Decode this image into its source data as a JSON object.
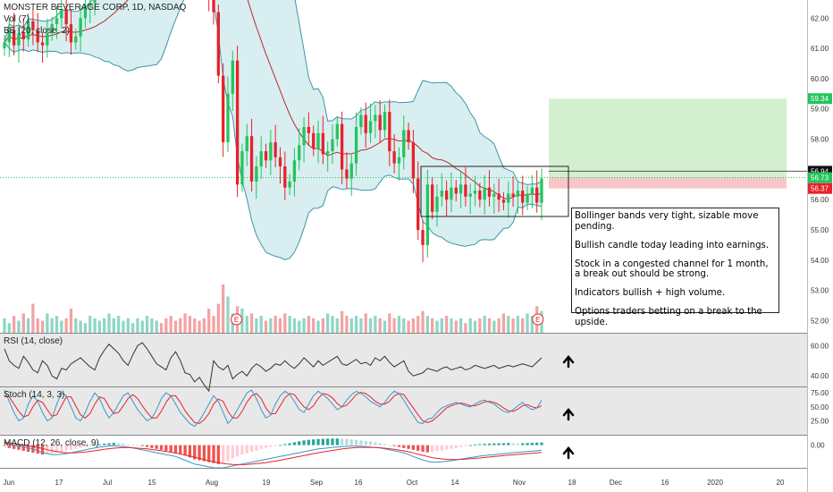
{
  "header": {
    "symbol_line": "MONSTER BEVERAGE CORP, 1D, NASDAQ",
    "vol_line": "Vol (7)",
    "bb_line": "BB (20, close, 2)"
  },
  "annotation": [
    "Bollinger bands very tight, sizable move pending.",
    "Bullish candle today leading into earnings.",
    "Stock in a congested channel for 1 month, a break out should be strong.",
    "Indicators bullish + high volume.",
    "Options traders betting on a break to the upside."
  ],
  "colors": {
    "up": "#22c55e",
    "down": "#e8212b",
    "bb_band": "#3a96a8",
    "bb_fill": "#d9eef0",
    "basis": "#b3312a",
    "target_zone": "#d4efcf",
    "stop_zone": "#f7c6c6",
    "arrow": "#000000"
  },
  "chart_data": [
    {
      "type": "candlestick",
      "title": "MONSTER BEVERAGE CORP, 1D, NASDAQ",
      "price_axis": [
        52,
        53,
        54,
        55,
        56,
        57,
        58,
        59,
        60,
        61,
        62
      ],
      "price_tick_labels": [
        "52.00",
        "53.00",
        "54.00",
        "55.00",
        "56.00",
        "57.00",
        "58.00",
        "59.00",
        "60.00",
        "61.00",
        "62.00"
      ],
      "ylim": [
        51.6,
        62.6
      ],
      "time_axis_labels": [
        "Jun",
        "17",
        "Jul",
        "15",
        "Aug",
        "19",
        "Sep",
        "16",
        "Oct",
        "14",
        "Nov",
        "18",
        "Dec",
        "16",
        "2020",
        "20"
      ],
      "price_tags": [
        {
          "label": "59.34",
          "value": 59.34,
          "color": "#22c55e"
        },
        {
          "label": "56.94",
          "value": 56.94,
          "color": "#111111"
        },
        {
          "label": "56.73",
          "value": 56.73,
          "color": "#22c55e"
        },
        {
          "label": "56.37",
          "value": 56.37,
          "color": "#e8212b"
        }
      ],
      "long_position": {
        "entry": 56.73,
        "target": 59.34,
        "stop": 56.37
      },
      "earnings_markers": [
        "E",
        "E"
      ],
      "closes": [
        61.2,
        61.6,
        61.1,
        61.5,
        61.3,
        61.9,
        61.6,
        61.2,
        61.1,
        61.5,
        61.8,
        62.0,
        62.3,
        61.8,
        61.2,
        61.4,
        62.0,
        62.4,
        62.5,
        62.9,
        63.1,
        63.4,
        63.6,
        64.1,
        64.3,
        64.6,
        65.0,
        65.2,
        65.6,
        66.0,
        66.3,
        66.6,
        66.9,
        66.7,
        66.4,
        66.2,
        65.9,
        65.6,
        65.1,
        64.6,
        64.2,
        63.7,
        63.3,
        62.8,
        62.2,
        60.1,
        57.9,
        59.5,
        60.6,
        56.5,
        57.6,
        58.1,
        56.6,
        57.1,
        57.6,
        57.3,
        57.9,
        57.4,
        57.1,
        56.4,
        56.6,
        57.3,
        57.8,
        58.4,
        58.2,
        57.7,
        58.2,
        57.5,
        57.6,
        58.0,
        58.5,
        57.0,
        56.7,
        57.2,
        58.4,
        58.8,
        58.2,
        58.6,
        58.8,
        58.3,
        58.9,
        57.6,
        57.2,
        57.4,
        58.3,
        57.9,
        56.7,
        55.0,
        54.5,
        56.5,
        55.6,
        56.1,
        56.3,
        56.0,
        56.4,
        56.2,
        56.5,
        56.1,
        56.2,
        56.3,
        56.0,
        56.4,
        56.1,
        56.2,
        56.0,
        55.9,
        56.2,
        56.1,
        56.3,
        55.9,
        56.2,
        56.4,
        55.9,
        56.7
      ],
      "opens": [
        61.0,
        61.2,
        61.6,
        61.1,
        61.5,
        61.3,
        61.9,
        61.6,
        61.2,
        61.1,
        61.5,
        61.8,
        62.0,
        62.3,
        61.8,
        61.2,
        61.4,
        62.0,
        62.4,
        62.5,
        62.9,
        63.1,
        63.4,
        63.6,
        64.1,
        64.3,
        64.6,
        65.0,
        65.2,
        65.6,
        66.0,
        66.3,
        66.6,
        66.9,
        66.7,
        66.4,
        66.2,
        65.9,
        65.6,
        65.1,
        64.6,
        64.2,
        63.7,
        63.3,
        62.8,
        62.2,
        60.1,
        57.9,
        59.5,
        60.6,
        56.5,
        57.6,
        58.1,
        56.6,
        57.1,
        57.6,
        57.3,
        57.9,
        57.4,
        57.1,
        56.4,
        56.6,
        57.3,
        57.8,
        58.4,
        58.2,
        57.7,
        58.2,
        57.5,
        57.6,
        58.0,
        58.5,
        57.0,
        56.7,
        57.2,
        58.4,
        58.8,
        58.2,
        58.6,
        58.8,
        58.3,
        58.9,
        57.6,
        57.2,
        57.4,
        58.3,
        57.9,
        56.7,
        55.0,
        54.5,
        56.5,
        55.6,
        56.1,
        56.3,
        56.0,
        56.4,
        56.2,
        56.5,
        56.1,
        56.2,
        56.3,
        56.0,
        56.4,
        56.1,
        56.2,
        56.0,
        55.9,
        56.2,
        56.1,
        56.3,
        55.9,
        56.2,
        56.4,
        55.9
      ],
      "volume_relative": [
        0.3,
        0.2,
        0.35,
        0.25,
        0.4,
        0.3,
        0.6,
        0.3,
        0.25,
        0.4,
        0.3,
        0.35,
        0.25,
        0.3,
        0.5,
        0.3,
        0.25,
        0.2,
        0.35,
        0.3,
        0.25,
        0.3,
        0.4,
        0.3,
        0.35,
        0.25,
        0.3,
        0.2,
        0.3,
        0.25,
        0.35,
        0.3,
        0.25,
        0.2,
        0.3,
        0.35,
        0.25,
        0.3,
        0.4,
        0.35,
        0.3,
        0.25,
        0.3,
        0.5,
        0.35,
        0.6,
        1.0,
        0.75,
        0.4,
        0.55,
        0.5,
        0.35,
        0.4,
        0.3,
        0.35,
        0.25,
        0.3,
        0.35,
        0.3,
        0.4,
        0.35,
        0.3,
        0.25,
        0.3,
        0.35,
        0.3,
        0.25,
        0.3,
        0.4,
        0.35,
        0.3,
        0.45,
        0.35,
        0.3,
        0.35,
        0.3,
        0.4,
        0.3,
        0.35,
        0.3,
        0.25,
        0.4,
        0.3,
        0.35,
        0.3,
        0.25,
        0.3,
        0.35,
        0.45,
        0.35,
        0.3,
        0.25,
        0.3,
        0.35,
        0.3,
        0.25,
        0.3,
        0.2,
        0.3,
        0.25,
        0.3,
        0.35,
        0.3,
        0.25,
        0.3,
        0.4,
        0.35,
        0.3,
        0.35,
        0.3,
        0.4,
        0.35,
        0.55,
        0.45
      ]
    },
    {
      "type": "line",
      "title": "RSI (14, close)",
      "series_name": "RSI (14, close)",
      "ylim": [
        33,
        68
      ],
      "tick_labels": [
        "60.00",
        "40.00"
      ],
      "tick_values": [
        60,
        40
      ],
      "values": [
        58,
        50,
        47,
        45,
        53,
        49,
        44,
        42,
        50,
        47,
        40,
        38,
        45,
        44,
        48,
        50,
        52,
        49,
        46,
        44,
        52,
        57,
        61,
        58,
        55,
        50,
        47,
        54,
        60,
        62,
        58,
        53,
        48,
        46,
        44,
        52,
        56,
        50,
        42,
        41,
        36,
        39,
        34,
        30,
        50,
        46,
        44,
        47,
        38,
        41,
        43,
        40,
        45,
        48,
        46,
        43,
        45,
        48,
        47,
        50,
        47,
        45,
        48,
        52,
        49,
        46,
        50,
        47,
        49,
        51,
        53,
        48,
        47,
        49,
        51,
        48,
        49,
        47,
        52,
        50,
        53,
        49,
        46,
        48,
        50,
        43,
        40,
        41,
        42,
        45,
        44,
        43,
        45,
        46,
        44,
        45,
        46,
        44,
        45,
        47,
        46,
        45,
        46,
        47,
        45,
        46,
        47,
        46,
        47,
        48,
        47,
        46,
        49,
        52
      ]
    },
    {
      "type": "line",
      "title": "Stoch (14, 3, 3)",
      "series": [
        {
          "name": "%K"
        },
        {
          "name": "%D"
        }
      ],
      "ylim": [
        0,
        85
      ],
      "tick_labels": [
        "75.00",
        "50.00",
        "25.00"
      ],
      "tick_values": [
        75,
        50,
        25
      ],
      "k": [
        80,
        60,
        40,
        25,
        30,
        55,
        70,
        60,
        40,
        25,
        30,
        55,
        75,
        70,
        50,
        30,
        25,
        40,
        60,
        75,
        65,
        45,
        30,
        40,
        55,
        70,
        75,
        60,
        45,
        35,
        25,
        30,
        45,
        65,
        75,
        70,
        55,
        40,
        30,
        20,
        15,
        25,
        40,
        55,
        70,
        60,
        40,
        20,
        30,
        45,
        60,
        75,
        80,
        65,
        45,
        30,
        35,
        55,
        70,
        78,
        72,
        60,
        45,
        40,
        55,
        70,
        78,
        72,
        65,
        55,
        45,
        50,
        62,
        72,
        78,
        74,
        68,
        60,
        55,
        50,
        58,
        70,
        78,
        74,
        62,
        48,
        35,
        22,
        20,
        28,
        30,
        40,
        48,
        52,
        55,
        58,
        55,
        52,
        50,
        55,
        60,
        62,
        58,
        55,
        48,
        42,
        40,
        45,
        52,
        58,
        50,
        45,
        48,
        62
      ],
      "d": [
        70,
        68,
        55,
        42,
        32,
        35,
        50,
        62,
        58,
        45,
        33,
        36,
        52,
        68,
        68,
        52,
        36,
        30,
        38,
        55,
        68,
        65,
        50,
        38,
        40,
        52,
        65,
        72,
        65,
        52,
        40,
        30,
        30,
        42,
        58,
        70,
        70,
        58,
        43,
        32,
        22,
        20,
        27,
        38,
        55,
        64,
        60,
        42,
        30,
        30,
        42,
        58,
        70,
        74,
        65,
        48,
        37,
        38,
        52,
        66,
        74,
        72,
        60,
        50,
        45,
        52,
        65,
        74,
        72,
        66,
        56,
        50,
        53,
        62,
        72,
        76,
        74,
        68,
        60,
        55,
        55,
        60,
        70,
        74,
        72,
        60,
        48,
        36,
        25,
        22,
        25,
        32,
        40,
        48,
        52,
        55,
        57,
        55,
        52,
        52,
        55,
        59,
        60,
        58,
        54,
        48,
        43,
        42,
        46,
        52,
        54,
        50,
        48,
        52
      ]
    },
    {
      "type": "bar",
      "title": "MACD (12, 26, close, 9)",
      "series_name": "MACD (12, 26, close, 9)",
      "tick_labels": [
        "0.00"
      ],
      "tick_values": [
        0
      ],
      "ylim": [
        -1.2,
        0.5
      ],
      "histogram": [
        -0.1,
        -0.15,
        -0.2,
        -0.25,
        -0.3,
        -0.35,
        -0.4,
        -0.45,
        -0.5,
        -0.48,
        -0.45,
        -0.4,
        -0.35,
        -0.3,
        -0.25,
        -0.2,
        -0.15,
        -0.1,
        -0.05,
        0.02,
        0.05,
        0.08,
        0.1,
        0.12,
        0.1,
        0.08,
        0.05,
        0.02,
        0.0,
        -0.05,
        -0.1,
        -0.15,
        -0.2,
        -0.25,
        -0.3,
        -0.35,
        -0.4,
        -0.45,
        -0.55,
        -0.65,
        -0.75,
        -0.8,
        -0.85,
        -0.9,
        -0.95,
        -1.0,
        -0.95,
        -0.85,
        -0.7,
        -0.6,
        -0.5,
        -0.45,
        -0.35,
        -0.3,
        -0.2,
        -0.15,
        -0.1,
        -0.05,
        0.0,
        0.05,
        0.1,
        0.15,
        0.2,
        0.25,
        0.28,
        0.3,
        0.32,
        0.33,
        0.34,
        0.35,
        0.35,
        0.34,
        0.33,
        0.3,
        0.28,
        0.25,
        0.22,
        0.2,
        0.15,
        0.1,
        0.05,
        0.0,
        -0.05,
        -0.1,
        -0.15,
        -0.2,
        -0.25,
        -0.3,
        -0.35,
        -0.38,
        -0.36,
        -0.32,
        -0.28,
        -0.24,
        -0.2,
        -0.15,
        -0.1,
        -0.05,
        0.0,
        0.03,
        0.05,
        0.07,
        0.08,
        0.09,
        0.1,
        0.1,
        0.11,
        0.1,
        0.09,
        0.1,
        0.11,
        0.12,
        0.13,
        0.14
      ],
      "macd_line": [
        0.1,
        0.05,
        0.0,
        -0.05,
        -0.1,
        -0.15,
        -0.2,
        -0.3,
        -0.4,
        -0.45,
        -0.5,
        -0.5,
        -0.48,
        -0.45,
        -0.4,
        -0.35,
        -0.3,
        -0.25,
        -0.2,
        -0.15,
        -0.1,
        -0.08,
        -0.05,
        -0.04,
        -0.05,
        -0.08,
        -0.1,
        -0.15,
        -0.2,
        -0.25,
        -0.3,
        -0.35,
        -0.4,
        -0.45,
        -0.5,
        -0.55,
        -0.6,
        -0.7,
        -0.8,
        -0.9,
        -1.0,
        -1.05,
        -1.1,
        -1.15,
        -1.2,
        -1.2,
        -1.2,
        -1.15,
        -1.1,
        -1.05,
        -1.0,
        -0.95,
        -0.9,
        -0.85,
        -0.8,
        -0.75,
        -0.7,
        -0.65,
        -0.6,
        -0.55,
        -0.5,
        -0.45,
        -0.4,
        -0.35,
        -0.3,
        -0.25,
        -0.2,
        -0.18,
        -0.15,
        -0.12,
        -0.1,
        -0.08,
        -0.06,
        -0.05,
        -0.05,
        -0.06,
        -0.08,
        -0.1,
        -0.12,
        -0.15,
        -0.2,
        -0.25,
        -0.3,
        -0.35,
        -0.4,
        -0.5,
        -0.6,
        -0.7,
        -0.78,
        -0.85,
        -0.9,
        -0.9,
        -0.88,
        -0.85,
        -0.82,
        -0.78,
        -0.74,
        -0.7,
        -0.66,
        -0.62,
        -0.58,
        -0.55,
        -0.52,
        -0.5,
        -0.48,
        -0.45,
        -0.42,
        -0.4,
        -0.38,
        -0.36,
        -0.34,
        -0.32,
        -0.3,
        -0.27
      ],
      "signal_line": [
        0.15,
        0.12,
        0.08,
        0.04,
        0.0,
        -0.04,
        -0.08,
        -0.12,
        -0.18,
        -0.24,
        -0.3,
        -0.34,
        -0.38,
        -0.4,
        -0.41,
        -0.4,
        -0.38,
        -0.36,
        -0.33,
        -0.3,
        -0.26,
        -0.22,
        -0.19,
        -0.16,
        -0.14,
        -0.13,
        -0.13,
        -0.14,
        -0.16,
        -0.18,
        -0.2,
        -0.23,
        -0.26,
        -0.3,
        -0.34,
        -0.38,
        -0.42,
        -0.47,
        -0.52,
        -0.58,
        -0.64,
        -0.7,
        -0.76,
        -0.82,
        -0.88,
        -0.93,
        -0.97,
        -1.0,
        -1.02,
        -1.03,
        -1.03,
        -1.02,
        -1.0,
        -0.98,
        -0.95,
        -0.92,
        -0.88,
        -0.84,
        -0.8,
        -0.75,
        -0.7,
        -0.65,
        -0.6,
        -0.55,
        -0.5,
        -0.45,
        -0.4,
        -0.36,
        -0.32,
        -0.28,
        -0.24,
        -0.2,
        -0.17,
        -0.15,
        -0.13,
        -0.12,
        -0.12,
        -0.12,
        -0.13,
        -0.14,
        -0.16,
        -0.19,
        -0.22,
        -0.26,
        -0.3,
        -0.35,
        -0.41,
        -0.48,
        -0.54,
        -0.6,
        -0.66,
        -0.7,
        -0.73,
        -0.75,
        -0.76,
        -0.76,
        -0.75,
        -0.74,
        -0.72,
        -0.7,
        -0.68,
        -0.65,
        -0.63,
        -0.6,
        -0.58,
        -0.55,
        -0.53,
        -0.51,
        -0.49,
        -0.47,
        -0.45,
        -0.43,
        -0.41,
        -0.39
      ]
    }
  ]
}
